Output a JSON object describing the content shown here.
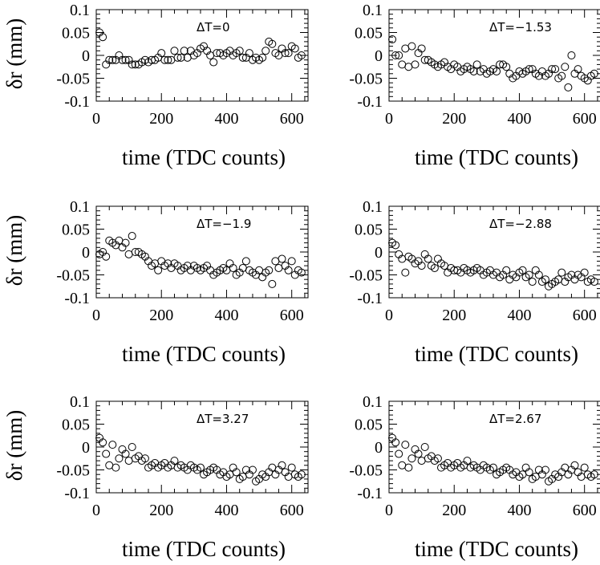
{
  "chart_data": [
    {
      "type": "scatter",
      "annotation": "ΔT=0",
      "xlabel": "time (TDC counts)",
      "ylabel": "δr (mm)",
      "xlim": [
        0,
        650
      ],
      "ylim": [
        -0.1,
        0.1
      ],
      "xticks": [
        "0",
        "200",
        "400",
        "600"
      ],
      "yticks": [
        "0.1",
        "0.05",
        "0",
        "-0.05",
        "-0.1"
      ],
      "marker": "open-circle",
      "x": [
        10,
        20,
        30,
        40,
        50,
        60,
        70,
        80,
        90,
        100,
        110,
        120,
        130,
        140,
        150,
        160,
        170,
        180,
        190,
        200,
        210,
        220,
        230,
        240,
        250,
        260,
        270,
        280,
        290,
        300,
        310,
        320,
        330,
        340,
        350,
        360,
        370,
        380,
        390,
        400,
        410,
        420,
        430,
        440,
        450,
        460,
        470,
        480,
        490,
        500,
        510,
        520,
        530,
        540,
        550,
        560,
        570,
        580,
        590,
        600,
        610,
        620,
        630
      ],
      "y": [
        0.05,
        0.04,
        -0.02,
        -0.01,
        -0.01,
        -0.01,
        0.0,
        -0.01,
        -0.01,
        -0.01,
        -0.02,
        -0.02,
        -0.02,
        -0.015,
        -0.01,
        -0.015,
        -0.01,
        -0.01,
        -0.005,
        0.005,
        -0.01,
        -0.01,
        -0.01,
        0.01,
        -0.005,
        -0.005,
        0.01,
        -0.005,
        0.01,
        0.0,
        0.005,
        0.015,
        0.02,
        0.01,
        0.0,
        -0.015,
        0.005,
        0.005,
        0.0,
        0.005,
        0.01,
        0.0,
        0.005,
        0.01,
        -0.005,
        -0.005,
        0.005,
        -0.01,
        -0.005,
        -0.01,
        -0.005,
        0.01,
        0.03,
        0.025,
        0.005,
        0.0,
        0.015,
        0.005,
        0.005,
        0.02,
        0.015,
        -0.005,
        0.0
      ]
    },
    {
      "type": "scatter",
      "annotation": "ΔT=−1.53",
      "xlabel": "time (TDC counts)",
      "ylabel": "",
      "xlim": [
        0,
        650
      ],
      "ylim": [
        -0.1,
        0.1
      ],
      "xticks": [
        "0",
        "200",
        "400",
        "600"
      ],
      "yticks": [
        "0.1",
        "0.05",
        "0",
        "-0.05",
        "-0.1"
      ],
      "marker": "open-circle",
      "x": [
        10,
        20,
        30,
        40,
        50,
        60,
        70,
        80,
        90,
        100,
        110,
        120,
        130,
        140,
        150,
        160,
        170,
        180,
        190,
        200,
        210,
        220,
        230,
        240,
        250,
        260,
        270,
        280,
        290,
        300,
        310,
        320,
        330,
        340,
        350,
        360,
        370,
        380,
        390,
        400,
        410,
        420,
        430,
        440,
        450,
        460,
        470,
        480,
        490,
        500,
        510,
        520,
        530,
        540,
        550,
        560,
        570,
        580,
        590,
        600,
        610,
        620,
        630
      ],
      "y": [
        0.035,
        0.0,
        0.0,
        -0.02,
        0.015,
        -0.025,
        0.02,
        -0.02,
        0.005,
        0.015,
        -0.01,
        -0.01,
        -0.015,
        -0.02,
        -0.025,
        -0.02,
        -0.015,
        -0.025,
        -0.03,
        -0.02,
        -0.025,
        -0.035,
        -0.03,
        -0.025,
        -0.03,
        -0.035,
        -0.02,
        -0.035,
        -0.03,
        -0.04,
        -0.035,
        -0.03,
        -0.035,
        -0.02,
        -0.02,
        -0.025,
        -0.04,
        -0.05,
        -0.045,
        -0.035,
        -0.04,
        -0.035,
        -0.03,
        -0.03,
        -0.04,
        -0.045,
        -0.035,
        -0.045,
        -0.04,
        -0.03,
        -0.03,
        -0.05,
        -0.045,
        -0.025,
        -0.07,
        0.0,
        -0.04,
        -0.03,
        -0.045,
        -0.05,
        -0.055,
        -0.045,
        -0.04
      ]
    },
    {
      "type": "scatter",
      "annotation": "ΔT=−1.9",
      "xlabel": "time (TDC counts)",
      "ylabel": "δr (mm)",
      "xlim": [
        0,
        650
      ],
      "ylim": [
        -0.1,
        0.1
      ],
      "xticks": [
        "0",
        "200",
        "400",
        "600"
      ],
      "yticks": [
        "0.1",
        "0.05",
        "0",
        "-0.05",
        "-0.1"
      ],
      "marker": "open-circle",
      "x": [
        10,
        20,
        30,
        40,
        50,
        60,
        70,
        80,
        90,
        100,
        110,
        120,
        130,
        140,
        150,
        160,
        170,
        180,
        190,
        200,
        210,
        220,
        230,
        240,
        250,
        260,
        270,
        280,
        290,
        300,
        310,
        320,
        330,
        340,
        350,
        360,
        370,
        380,
        390,
        400,
        410,
        420,
        430,
        440,
        450,
        460,
        470,
        480,
        490,
        500,
        510,
        520,
        530,
        540,
        550,
        560,
        570,
        580,
        590,
        600,
        610,
        620,
        630
      ],
      "y": [
        -0.005,
        0.0,
        -0.01,
        0.025,
        0.02,
        0.015,
        0.025,
        0.01,
        0.02,
        -0.005,
        0.035,
        0.0,
        0.0,
        -0.005,
        -0.01,
        -0.02,
        -0.03,
        -0.025,
        -0.04,
        -0.02,
        -0.03,
        -0.025,
        -0.035,
        -0.025,
        -0.03,
        -0.04,
        -0.035,
        -0.03,
        -0.04,
        -0.03,
        -0.035,
        -0.04,
        -0.035,
        -0.03,
        -0.04,
        -0.05,
        -0.045,
        -0.04,
        -0.035,
        -0.04,
        -0.025,
        -0.035,
        -0.05,
        -0.045,
        -0.035,
        -0.02,
        -0.04,
        -0.045,
        -0.05,
        -0.04,
        -0.055,
        -0.045,
        -0.04,
        -0.07,
        -0.02,
        -0.035,
        -0.015,
        -0.03,
        -0.04,
        -0.02,
        -0.05,
        -0.04,
        -0.045
      ]
    },
    {
      "type": "scatter",
      "annotation": "ΔT=−2.88",
      "xlabel": "time (TDC counts)",
      "ylabel": "",
      "xlim": [
        0,
        650
      ],
      "ylim": [
        -0.1,
        0.1
      ],
      "xticks": [
        "0",
        "200",
        "400",
        "600"
      ],
      "yticks": [
        "0.1",
        "0.05",
        "0",
        "-0.05",
        "-0.1"
      ],
      "marker": "open-circle",
      "x": [
        10,
        20,
        30,
        40,
        50,
        60,
        70,
        80,
        90,
        100,
        110,
        120,
        130,
        140,
        150,
        160,
        170,
        180,
        190,
        200,
        210,
        220,
        230,
        240,
        250,
        260,
        270,
        280,
        290,
        300,
        310,
        320,
        330,
        340,
        350,
        360,
        370,
        380,
        390,
        400,
        410,
        420,
        430,
        440,
        450,
        460,
        470,
        480,
        490,
        500,
        510,
        520,
        530,
        540,
        550,
        560,
        570,
        580,
        590,
        600,
        610,
        620,
        630
      ],
      "y": [
        0.02,
        0.015,
        -0.005,
        -0.015,
        -0.045,
        -0.01,
        -0.015,
        -0.025,
        -0.02,
        -0.03,
        -0.005,
        -0.015,
        -0.03,
        -0.035,
        -0.015,
        -0.025,
        -0.03,
        -0.045,
        -0.035,
        -0.04,
        -0.04,
        -0.045,
        -0.035,
        -0.04,
        -0.045,
        -0.04,
        -0.035,
        -0.04,
        -0.05,
        -0.045,
        -0.04,
        -0.05,
        -0.045,
        -0.055,
        -0.05,
        -0.04,
        -0.06,
        -0.05,
        -0.055,
        -0.045,
        -0.04,
        -0.055,
        -0.05,
        -0.065,
        -0.04,
        -0.05,
        -0.065,
        -0.06,
        -0.075,
        -0.07,
        -0.065,
        -0.06,
        -0.045,
        -0.065,
        -0.055,
        -0.05,
        -0.06,
        -0.05,
        -0.055,
        -0.045,
        -0.065,
        -0.06,
        -0.065
      ]
    },
    {
      "type": "scatter",
      "annotation": "ΔT=3.27",
      "xlabel": "time (TDC counts)",
      "ylabel": "δr (mm)",
      "xlim": [
        0,
        650
      ],
      "ylim": [
        -0.1,
        0.1
      ],
      "xticks": [
        "0",
        "200",
        "400",
        "600"
      ],
      "yticks": [
        "0.1",
        "0.05",
        "0",
        "-0.05",
        "-0.1"
      ],
      "marker": "open-circle",
      "x": [
        10,
        20,
        30,
        40,
        50,
        60,
        70,
        80,
        90,
        100,
        110,
        120,
        130,
        140,
        150,
        160,
        170,
        180,
        190,
        200,
        210,
        220,
        230,
        240,
        250,
        260,
        270,
        280,
        290,
        300,
        310,
        320,
        330,
        340,
        350,
        360,
        370,
        380,
        390,
        400,
        410,
        420,
        430,
        440,
        450,
        460,
        470,
        480,
        490,
        500,
        510,
        520,
        530,
        540,
        550,
        560,
        570,
        580,
        590,
        600,
        610,
        620,
        630
      ],
      "y": [
        0.02,
        0.01,
        -0.015,
        -0.04,
        0.005,
        -0.045,
        -0.025,
        -0.005,
        -0.015,
        -0.03,
        0.0,
        -0.025,
        -0.02,
        -0.03,
        -0.025,
        -0.045,
        -0.04,
        -0.035,
        -0.045,
        -0.04,
        -0.035,
        -0.045,
        -0.04,
        -0.03,
        -0.045,
        -0.04,
        -0.045,
        -0.05,
        -0.04,
        -0.045,
        -0.05,
        -0.045,
        -0.06,
        -0.055,
        -0.05,
        -0.045,
        -0.05,
        -0.06,
        -0.055,
        -0.065,
        -0.06,
        -0.045,
        -0.055,
        -0.07,
        -0.065,
        -0.05,
        -0.06,
        -0.05,
        -0.075,
        -0.07,
        -0.06,
        -0.065,
        -0.055,
        -0.045,
        -0.06,
        -0.05,
        -0.04,
        -0.055,
        -0.065,
        -0.045,
        -0.06,
        -0.065,
        -0.06
      ]
    },
    {
      "type": "scatter",
      "annotation": "ΔT=2.67",
      "xlabel": "time (TDC counts)",
      "ylabel": "",
      "xlim": [
        0,
        650
      ],
      "ylim": [
        -0.1,
        0.1
      ],
      "xticks": [
        "0",
        "200",
        "400",
        "600"
      ],
      "yticks": [
        "0.1",
        "0.05",
        "0",
        "-0.05",
        "-0.1"
      ],
      "marker": "open-circle",
      "x": [
        10,
        20,
        30,
        40,
        50,
        60,
        70,
        80,
        90,
        100,
        110,
        120,
        130,
        140,
        150,
        160,
        170,
        180,
        190,
        200,
        210,
        220,
        230,
        240,
        250,
        260,
        270,
        280,
        290,
        300,
        310,
        320,
        330,
        340,
        350,
        360,
        370,
        380,
        390,
        400,
        410,
        420,
        430,
        440,
        450,
        460,
        470,
        480,
        490,
        500,
        510,
        520,
        530,
        540,
        550,
        560,
        570,
        580,
        590,
        600,
        610,
        620,
        630
      ],
      "y": [
        0.02,
        0.01,
        -0.015,
        -0.04,
        0.005,
        -0.045,
        -0.025,
        -0.005,
        -0.015,
        -0.03,
        0.0,
        -0.025,
        -0.02,
        -0.03,
        -0.025,
        -0.045,
        -0.04,
        -0.035,
        -0.045,
        -0.04,
        -0.035,
        -0.045,
        -0.04,
        -0.03,
        -0.045,
        -0.04,
        -0.045,
        -0.05,
        -0.04,
        -0.045,
        -0.05,
        -0.045,
        -0.06,
        -0.055,
        -0.05,
        -0.045,
        -0.05,
        -0.06,
        -0.055,
        -0.065,
        -0.06,
        -0.045,
        -0.055,
        -0.07,
        -0.065,
        -0.05,
        -0.06,
        -0.05,
        -0.075,
        -0.07,
        -0.06,
        -0.065,
        -0.055,
        -0.045,
        -0.06,
        -0.05,
        -0.04,
        -0.055,
        -0.065,
        -0.045,
        -0.06,
        -0.065,
        -0.06
      ]
    }
  ]
}
